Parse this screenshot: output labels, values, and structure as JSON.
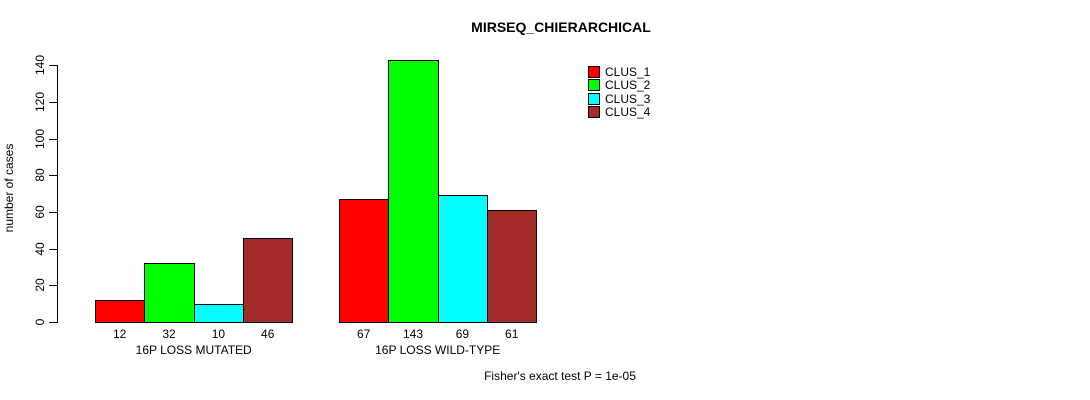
{
  "title": "MIRSEQ_CHIERARCHICAL",
  "annotation": "Fisher's exact test P = 1e-05",
  "chart_data": {
    "type": "bar",
    "title": "MIRSEQ_CHIERARCHICAL",
    "categories": [
      "16P LOSS MUTATED",
      "16P LOSS WILD-TYPE"
    ],
    "series": [
      {
        "name": "CLUS_1",
        "color": "#FF0000",
        "values": [
          12,
          67
        ]
      },
      {
        "name": "CLUS_2",
        "color": "#00FF00",
        "values": [
          32,
          143
        ]
      },
      {
        "name": "CLUS_3",
        "color": "#00FFFF",
        "values": [
          10,
          69
        ]
      },
      {
        "name": "CLUS_4",
        "color": "#A52A2A",
        "values": [
          46,
          61
        ]
      }
    ],
    "xlabel": "",
    "ylabel": "number of cases",
    "yticks": [
      0,
      20,
      40,
      60,
      80,
      100,
      120,
      140
    ],
    "ylim": [
      0,
      140
    ],
    "bar_value_labels": [
      [
        12,
        32,
        10,
        46
      ],
      [
        67,
        143,
        69,
        61
      ]
    ],
    "legend_entries": [
      "CLUS_1",
      "CLUS_2",
      "CLUS_3",
      "CLUS_4"
    ],
    "legend_position": "top-right",
    "grid": false,
    "bar_border_color": "#000000",
    "axis_color": "#000000"
  }
}
